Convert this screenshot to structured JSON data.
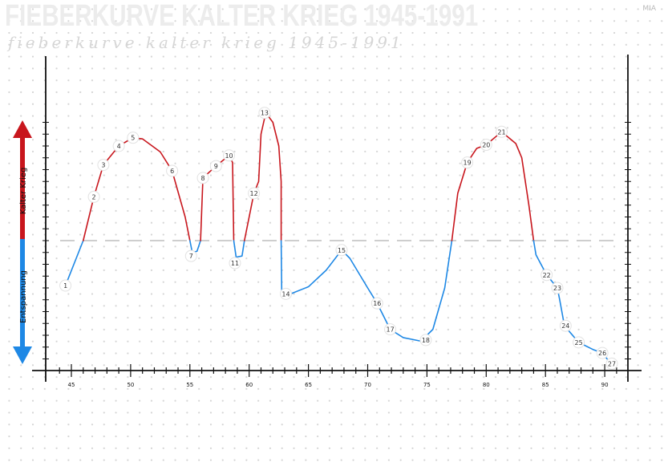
{
  "header": {
    "title": "FIEBERKURVE KALTER KRIEG 1945-1991",
    "subtitle": "fieberkurve kalter krieg 1945-1991",
    "author": "MIA"
  },
  "chart_data": {
    "type": "line",
    "title": "FIEBERKURVE KALTER KRIEG 1945-1991",
    "xlabel": "",
    "ylabel_positive": "Kalter Krieg",
    "ylabel_negative": "Entspannung",
    "xlim": [
      43,
      92
    ],
    "ylim": [
      -11,
      11
    ],
    "x_ticks": [
      45,
      50,
      55,
      60,
      65,
      70,
      75,
      80,
      85,
      90
    ],
    "x_tick_labels": [
      "45",
      "50",
      "55",
      "60",
      "65",
      "70",
      "75",
      "80",
      "85",
      "90"
    ],
    "zero_line": "dashed",
    "grid": "dot-grid",
    "colors": {
      "positive": "#c8161d",
      "negative": "#1e88e5",
      "zero_line": "#bdbdbd",
      "axis": "#111111"
    },
    "curve": [
      [
        44.5,
        -3.8
      ],
      [
        46,
        0
      ],
      [
        46.9,
        3.7
      ],
      [
        47.7,
        6.4
      ],
      [
        49,
        8
      ],
      [
        50.2,
        8.7
      ],
      [
        51,
        8.6
      ],
      [
        52.5,
        7.5
      ],
      [
        53.5,
        5.9
      ],
      [
        54.6,
        2
      ],
      [
        55,
        0
      ],
      [
        55.2,
        -1
      ],
      [
        55.6,
        -0.9
      ],
      [
        55.9,
        0
      ],
      [
        56.1,
        5.3
      ],
      [
        57.2,
        6.3
      ],
      [
        58.3,
        7.2
      ],
      [
        58.6,
        6.6
      ],
      [
        58.7,
        0
      ],
      [
        58.9,
        -1.4
      ],
      [
        59.4,
        -1.3
      ],
      [
        59.6,
        0
      ],
      [
        60.4,
        4
      ],
      [
        60.8,
        5
      ],
      [
        61,
        9
      ],
      [
        61.4,
        10.8
      ],
      [
        62,
        10
      ],
      [
        62.5,
        8
      ],
      [
        62.7,
        5
      ],
      [
        62.7,
        0
      ],
      [
        62.75,
        -4.5
      ],
      [
        63.5,
        -4.5
      ],
      [
        65,
        -3.9
      ],
      [
        66.5,
        -2.5
      ],
      [
        67.8,
        -0.8
      ],
      [
        68.5,
        -1.5
      ],
      [
        70,
        -4
      ],
      [
        70.8,
        -5.3
      ],
      [
        71.9,
        -7.5
      ],
      [
        73,
        -8.2
      ],
      [
        74.5,
        -8.5
      ],
      [
        75.5,
        -7.5
      ],
      [
        76.5,
        -4
      ],
      [
        77.1,
        0
      ],
      [
        77.6,
        4
      ],
      [
        78.4,
        6.6
      ],
      [
        79.2,
        7.8
      ],
      [
        80,
        8.1
      ],
      [
        81.3,
        9.2
      ],
      [
        82.5,
        8.2
      ],
      [
        83,
        7
      ],
      [
        83.6,
        3
      ],
      [
        84,
        0
      ],
      [
        84.2,
        -1.2
      ],
      [
        85.1,
        -2.9
      ],
      [
        86,
        -4
      ],
      [
        86.2,
        -5
      ],
      [
        86.6,
        -7.2
      ],
      [
        87.8,
        -8.6
      ],
      [
        89,
        -9.2
      ],
      [
        89.8,
        -9.5
      ],
      [
        90.2,
        -10
      ]
    ],
    "events": [
      {
        "label": "1",
        "x": 44.5,
        "y": -3.8
      },
      {
        "label": "2",
        "x": 46.9,
        "y": 3.7
      },
      {
        "label": "3",
        "x": 47.7,
        "y": 6.4
      },
      {
        "label": "4",
        "x": 49,
        "y": 8
      },
      {
        "label": "5",
        "x": 50.2,
        "y": 8.7
      },
      {
        "label": "6",
        "x": 53.5,
        "y": 5.9
      },
      {
        "label": "7",
        "x": 55.1,
        "y": -1.3
      },
      {
        "label": "8",
        "x": 56.1,
        "y": 5.3
      },
      {
        "label": "9",
        "x": 57.2,
        "y": 6.3
      },
      {
        "label": "10",
        "x": 58.3,
        "y": 7.2
      },
      {
        "label": "11",
        "x": 58.8,
        "y": -1.9
      },
      {
        "label": "12",
        "x": 60.4,
        "y": 4
      },
      {
        "label": "13",
        "x": 61.3,
        "y": 10.8
      },
      {
        "label": "14",
        "x": 63.1,
        "y": -4.5
      },
      {
        "label": "15",
        "x": 67.8,
        "y": -0.8
      },
      {
        "label": "16",
        "x": 70.8,
        "y": -5.3
      },
      {
        "label": "17",
        "x": 71.9,
        "y": -7.5
      },
      {
        "label": "18",
        "x": 74.9,
        "y": -8.4
      },
      {
        "label": "19",
        "x": 78.4,
        "y": 6.6
      },
      {
        "label": "20",
        "x": 80,
        "y": 8.1
      },
      {
        "label": "21",
        "x": 81.3,
        "y": 9.2
      },
      {
        "label": "22",
        "x": 85.1,
        "y": -2.9
      },
      {
        "label": "23",
        "x": 86,
        "y": -4
      },
      {
        "label": "24",
        "x": 86.7,
        "y": -7.2
      },
      {
        "label": "25",
        "x": 87.8,
        "y": -8.6
      },
      {
        "label": "26",
        "x": 89.8,
        "y": -9.5
      },
      {
        "label": "27",
        "x": 90.6,
        "y": -10.4
      }
    ]
  }
}
